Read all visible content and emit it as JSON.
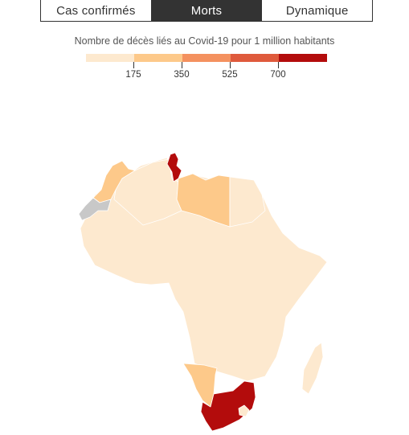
{
  "tabs": [
    {
      "label": "Cas confirmés",
      "active": false
    },
    {
      "label": "Morts",
      "active": true
    },
    {
      "label": "Dynamique",
      "active": false
    }
  ],
  "legend": {
    "title": "Nombre de décès liés au Covid-19 pour 1 million habitants",
    "colors": [
      "#fde9cf",
      "#fdc98a",
      "#f4915f",
      "#df5a3c",
      "#b30c0c"
    ],
    "ticks": [
      "175",
      "350",
      "525",
      "700"
    ],
    "no_data_color": "#c8c8c8"
  },
  "map": {
    "regions": [
      {
        "name": "Morocco",
        "color": "#fdc98a"
      },
      {
        "name": "Western Sahara",
        "color": "#c8c8c8"
      },
      {
        "name": "Algeria",
        "color": "#fde9cf"
      },
      {
        "name": "Tunisia",
        "color": "#b30c0c"
      },
      {
        "name": "Libya",
        "color": "#fdc98a"
      },
      {
        "name": "Egypt",
        "color": "#fde9cf"
      },
      {
        "name": "Namibia",
        "color": "#fdc98a"
      },
      {
        "name": "South Africa",
        "color": "#b30c0c"
      },
      {
        "name": "Lesotho",
        "color": "#fde9cf"
      },
      {
        "name": "Rest of Africa",
        "color": "#fde9cf"
      },
      {
        "name": "Madagascar",
        "color": "#fde9cf"
      }
    ]
  }
}
